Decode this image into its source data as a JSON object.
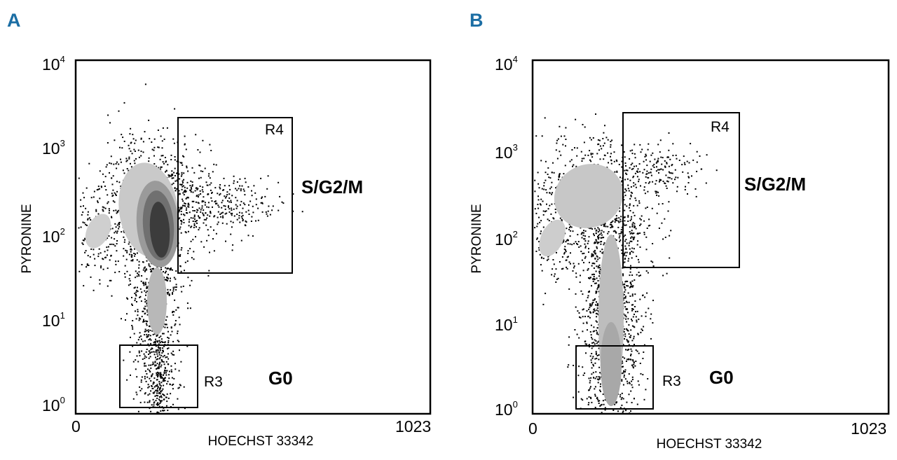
{
  "panels": [
    {
      "letter": "A",
      "xlabel": "HOECHST 33342",
      "ylabel": "PYRONINE",
      "x_ticks": [
        "0",
        "1023"
      ],
      "y_ticks": [
        {
          "base": "10",
          "exp": "4"
        },
        {
          "base": "10",
          "exp": "3"
        },
        {
          "base": "10",
          "exp": "2"
        },
        {
          "base": "10",
          "exp": "1"
        },
        {
          "base": "10",
          "exp": "0"
        }
      ],
      "gates": [
        {
          "label": "R4",
          "phase": "S/G2/M"
        },
        {
          "label": "R3",
          "phase": "G0"
        }
      ]
    },
    {
      "letter": "B",
      "xlabel": "HOECHST 33342",
      "ylabel": "PYRONINE",
      "x_ticks": [
        "0",
        "1023"
      ],
      "y_ticks": [
        {
          "base": "10",
          "exp": "4"
        },
        {
          "base": "10",
          "exp": "3"
        },
        {
          "base": "10",
          "exp": "2"
        },
        {
          "base": "10",
          "exp": "1"
        },
        {
          "base": "10",
          "exp": "0"
        }
      ],
      "gates": [
        {
          "label": "R4",
          "phase": "S/G2/M"
        },
        {
          "label": "R3",
          "phase": "G0"
        }
      ]
    }
  ],
  "chart_data": [
    {
      "type": "scatter",
      "panel": "A",
      "xlabel": "HOECHST 33342",
      "ylabel": "PYRONINE",
      "xlim": [
        0,
        1023
      ],
      "ylim": [
        1,
        10000
      ],
      "y_scale": "log",
      "regions": [
        {
          "name": "R4",
          "phase": "S/G2/M",
          "x_range": [
            290,
            620
          ],
          "y_range": [
            40,
            2200
          ]
        },
        {
          "name": "R3",
          "phase": "G0",
          "x_range": [
            125,
            350
          ],
          "y_range": [
            1.1,
            5.5
          ]
        }
      ],
      "populations": [
        {
          "x_center": 240,
          "y_center": 100,
          "level": "densest"
        },
        {
          "x_center": 25,
          "y_center": 90,
          "level": "sparse"
        }
      ]
    },
    {
      "type": "scatter",
      "panel": "B",
      "xlabel": "HOECHST 33342",
      "ylabel": "PYRONINE",
      "xlim": [
        0,
        1023
      ],
      "ylim": [
        1,
        10000
      ],
      "y_scale": "log",
      "regions": [
        {
          "name": "R4",
          "phase": "S/G2/M",
          "x_range": [
            260,
            590
          ],
          "y_range": [
            45,
            2700
          ]
        },
        {
          "name": "R3",
          "phase": "G0",
          "x_range": [
            120,
            340
          ],
          "y_range": [
            1.1,
            5.8
          ]
        }
      ],
      "populations": [
        {
          "x_center": 200,
          "y_center": 5,
          "level": "dense"
        },
        {
          "x_center": 150,
          "y_center": 200,
          "level": "dense"
        }
      ]
    }
  ]
}
